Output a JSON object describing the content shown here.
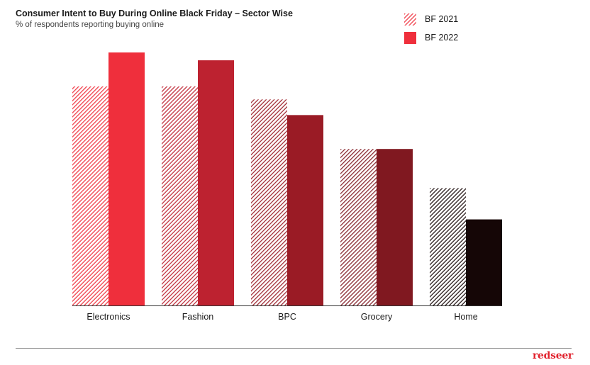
{
  "header": {
    "title": "Consumer Intent to Buy During Online Black Friday – Sector Wise",
    "subtitle": "% of respondents reporting buying online"
  },
  "legend": {
    "items": [
      {
        "label": "BF 2021",
        "pattern": "hatched",
        "color": "#ef2f3c"
      },
      {
        "label": "BF 2022",
        "pattern": "solid",
        "color": "#ef2f3c"
      }
    ]
  },
  "brand": {
    "name": "redseer",
    "color": "#e1242f"
  },
  "chart_data": {
    "type": "bar",
    "title": "Consumer Intent to Buy During Online Black Friday – Sector Wise",
    "subtitle": "% of respondents reporting buying online",
    "categories": [
      "Electronics",
      "Fashion",
      "BPC",
      "Grocery",
      "Home"
    ],
    "series": [
      {
        "name": "BF 2021",
        "style": "hatched",
        "values": [
          84,
          84,
          79,
          60,
          45
        ]
      },
      {
        "name": "BF 2022",
        "style": "solid",
        "values": [
          97,
          94,
          73,
          60,
          33
        ]
      }
    ],
    "category_colors": [
      "#ef2f3c",
      "#bd2230",
      "#9a1b25",
      "#801820",
      "#150606"
    ],
    "ylim": [
      0,
      100
    ],
    "value_axis_shown": false,
    "grid": false,
    "legend_position": "top-right"
  }
}
